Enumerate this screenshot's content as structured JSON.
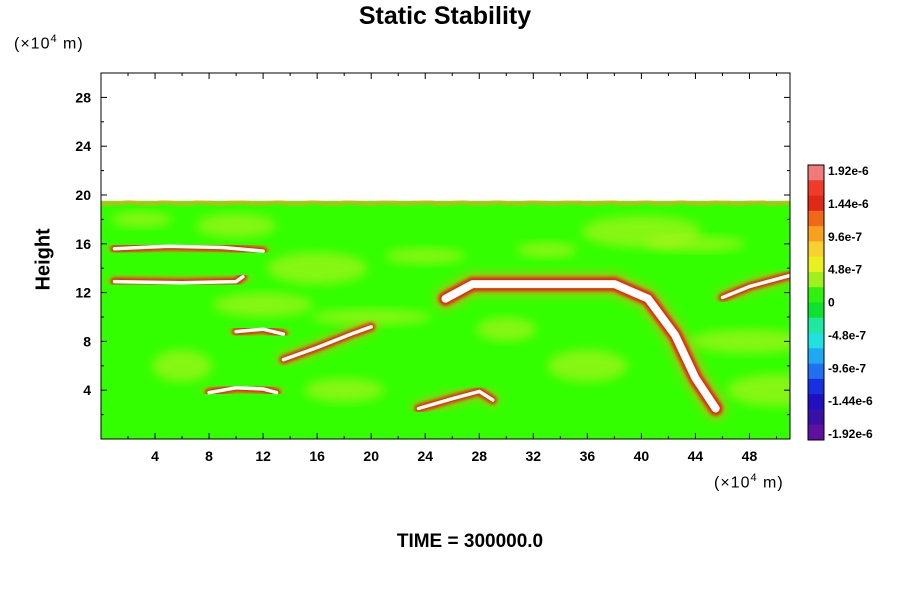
{
  "chart_data": {
    "type": "heatmap",
    "title": "Static Stability",
    "ylabel": "Height",
    "x_unit": "(×10⁴ m)",
    "y_unit": "(×10⁴ m)",
    "x_ticks": [
      4,
      8,
      12,
      16,
      20,
      24,
      28,
      32,
      36,
      40,
      44,
      48
    ],
    "y_ticks": [
      4,
      8,
      12,
      16,
      20,
      24,
      28
    ],
    "xlim": [
      0,
      51
    ],
    "ylim": [
      0,
      30
    ],
    "field_top": 19.5,
    "colorbar": {
      "labels": [
        "1.92e-6",
        "1.44e-6",
        "9.6e-7",
        "4.8e-7",
        "0",
        "-4.8e-7",
        "-9.6e-7",
        "-1.44e-6",
        "-1.92e-6"
      ],
      "colors": [
        "#f07a7a",
        "#f03a2a",
        "#e02818",
        "#f06818",
        "#f8a020",
        "#f8d030",
        "#e8f020",
        "#a0f020",
        "#30f010",
        "#10e030",
        "#20e8a0",
        "#20e0e0",
        "#20a8f0",
        "#2070f0",
        "#1830e0",
        "#2010c0",
        "#3810a8",
        "#6010a0"
      ]
    },
    "background_color": "#33ff00",
    "features": [
      {
        "name": "lee-wave-band",
        "points": [
          [
            25.5,
            11.5
          ],
          [
            27.5,
            12.7
          ],
          [
            38,
            12.7
          ],
          [
            40.5,
            11.5
          ],
          [
            42.5,
            8.5
          ],
          [
            44,
            5
          ],
          [
            45.5,
            2.5
          ]
        ]
      },
      {
        "name": "upper-left-band",
        "points": [
          [
            1,
            12.9
          ],
          [
            6,
            12.8
          ],
          [
            10,
            12.9
          ],
          [
            10.5,
            13.3
          ]
        ]
      },
      {
        "name": "upper-left-band-2",
        "points": [
          [
            1,
            15.6
          ],
          [
            5,
            15.8
          ],
          [
            9,
            15.7
          ],
          [
            12,
            15.4
          ]
        ]
      },
      {
        "name": "mid-band",
        "points": [
          [
            13.5,
            6.5
          ],
          [
            16,
            7.5
          ],
          [
            18.5,
            8.6
          ],
          [
            20,
            9.2
          ]
        ]
      },
      {
        "name": "low-band",
        "points": [
          [
            8,
            3.8
          ],
          [
            10,
            4.2
          ],
          [
            12,
            4.1
          ],
          [
            13,
            3.8
          ]
        ]
      },
      {
        "name": "low-right-band",
        "points": [
          [
            23.5,
            2.5
          ],
          [
            26,
            3.3
          ],
          [
            28,
            3.9
          ],
          [
            29,
            3.2
          ]
        ]
      },
      {
        "name": "left-mid-band",
        "points": [
          [
            10,
            8.8
          ],
          [
            12,
            9
          ],
          [
            13.5,
            8.6
          ]
        ]
      },
      {
        "name": "right-band",
        "points": [
          [
            46,
            11.6
          ],
          [
            48,
            12.5
          ],
          [
            51,
            13.4
          ]
        ]
      }
    ]
  },
  "time_label": "TIME = 300000.0"
}
